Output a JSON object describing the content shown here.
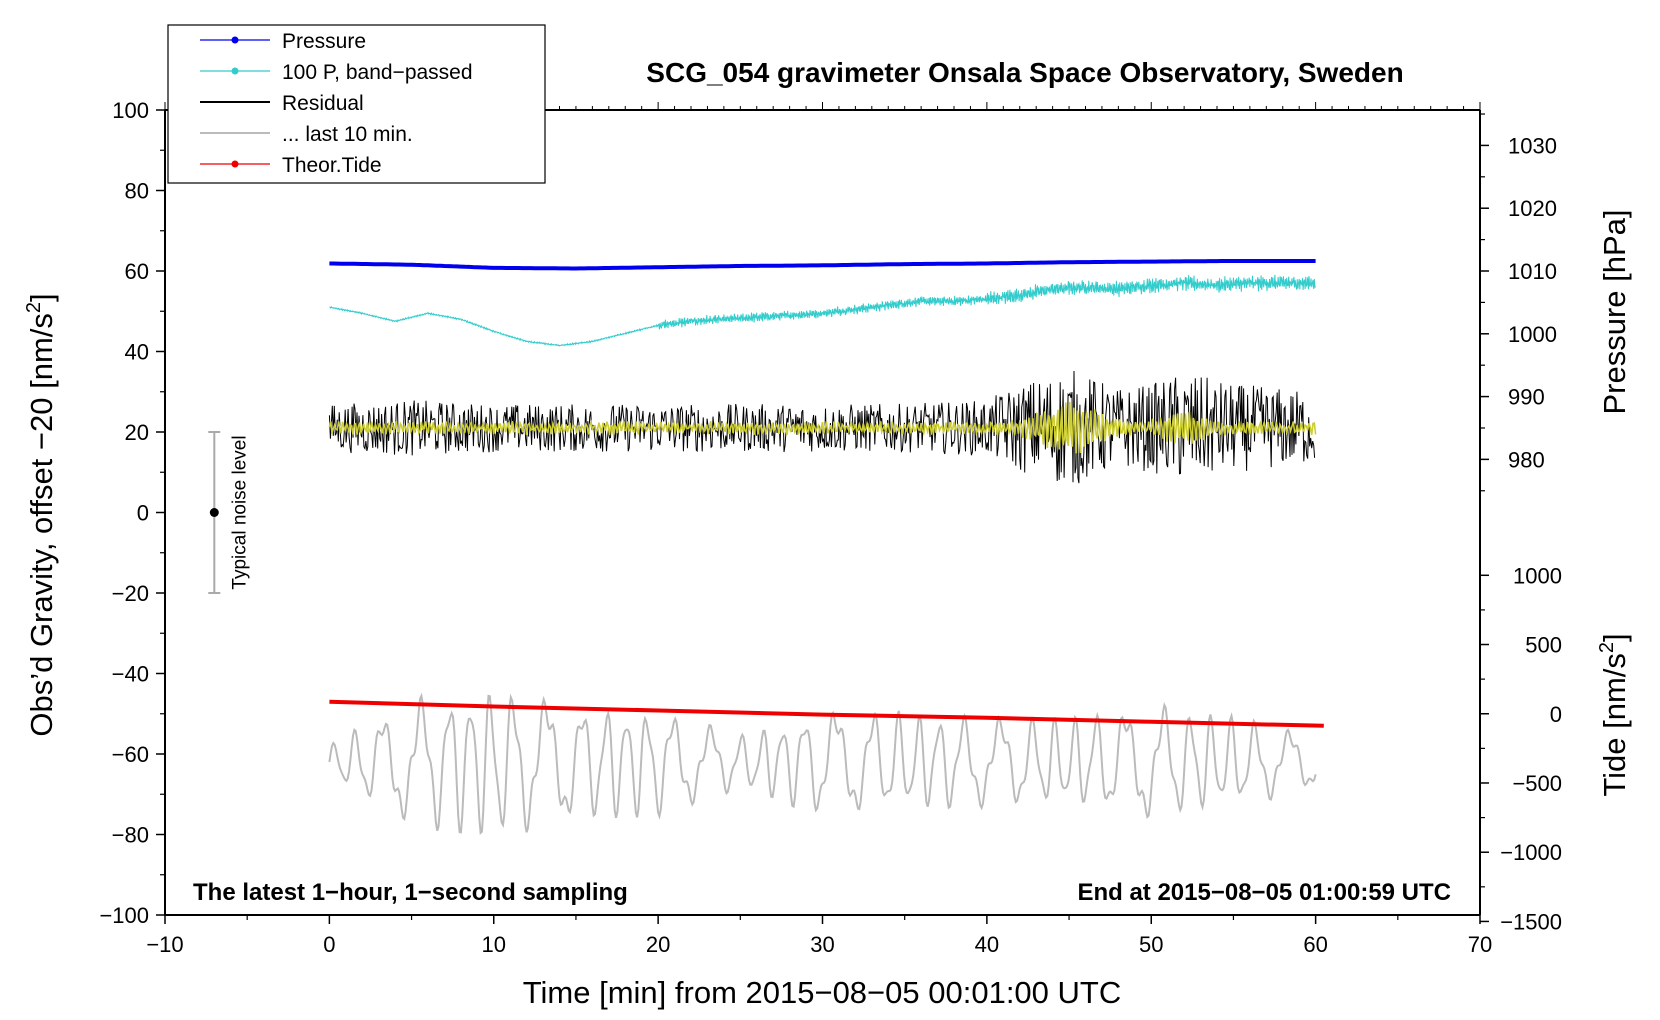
{
  "chart_data": {
    "type": "line",
    "title": "SCG_054 gravimeter Onsala Space Observatory, Sweden",
    "xlabel": "Time [min] from 2015−08−05 00:01:00 UTC",
    "ylabel_left": "Obs’d Gravity, offset −20 [nm/s",
    "ylabel_right_top": "Pressure [hPa]",
    "ylabel_right_bottom": "Tide [nm/s",
    "superscript": "2",
    "close_bracket": "]",
    "xlim": [
      -10,
      70
    ],
    "ylim_left": [
      -100,
      100
    ],
    "x_ticks": [
      {
        "v": -10,
        "label": "−10"
      },
      {
        "v": 0,
        "label": "0"
      },
      {
        "v": 10,
        "label": "10"
      },
      {
        "v": 20,
        "label": "20"
      },
      {
        "v": 30,
        "label": "30"
      },
      {
        "v": 40,
        "label": "40"
      },
      {
        "v": 50,
        "label": "50"
      },
      {
        "v": 60,
        "label": "60"
      },
      {
        "v": 70,
        "label": "70"
      }
    ],
    "y_ticks_left": [
      {
        "v": 100,
        "label": "100"
      },
      {
        "v": 80,
        "label": "80"
      },
      {
        "v": 60,
        "label": "60"
      },
      {
        "v": 40,
        "label": "40"
      },
      {
        "v": 20,
        "label": "20"
      },
      {
        "v": 0,
        "label": "0"
      },
      {
        "v": -20,
        "label": "−20"
      },
      {
        "v": -40,
        "label": "−40"
      },
      {
        "v": -60,
        "label": "−60"
      },
      {
        "v": -80,
        "label": "−80"
      },
      {
        "v": -100,
        "label": "−100"
      }
    ],
    "pressure_axis": {
      "calibration": "1010 hPa = 60 nm/s2 on left axis; 10 hPa = 15.6 nm/s2",
      "ticks": [
        {
          "v": 1030,
          "label": "1030"
        },
        {
          "v": 1020,
          "label": "1020"
        },
        {
          "v": 1010,
          "label": "1010"
        },
        {
          "v": 1000,
          "label": "1000"
        },
        {
          "v": 990,
          "label": "990"
        },
        {
          "v": 980,
          "label": "980"
        }
      ]
    },
    "tide_axis": {
      "calibration": "0 nm/s2 tide = -50 on left axis; 500 nm/s2 = 17.2 on left axis",
      "ticks": [
        {
          "v": 1000,
          "label": "1000"
        },
        {
          "v": 500,
          "label": "500"
        },
        {
          "v": 0,
          "label": "0"
        },
        {
          "v": -500,
          "label": "−500"
        },
        {
          "v": -1000,
          "label": "−1000"
        },
        {
          "v": -1500,
          "label": "−1500"
        }
      ]
    },
    "series": [
      {
        "name": "Pressure",
        "color": "#0000ee",
        "x": [
          0,
          5,
          10,
          15,
          20,
          25,
          30,
          35,
          40,
          45,
          50,
          55,
          60
        ],
        "y_hpa": [
          1011.2,
          1011.0,
          1010.5,
          1010.4,
          1010.6,
          1010.8,
          1010.9,
          1011.1,
          1011.2,
          1011.4,
          1011.5,
          1011.6,
          1011.6
        ]
      },
      {
        "name": "100 P, band−passed",
        "color": "#33cccc",
        "x": [
          0,
          2,
          4,
          6,
          8,
          10,
          12,
          14,
          16,
          18,
          20,
          22,
          24,
          26,
          28,
          30,
          32,
          34,
          36,
          38,
          40,
          42,
          44,
          46,
          48,
          50,
          52,
          54,
          56,
          58,
          60
        ],
        "y": [
          51,
          49.5,
          47.5,
          49.5,
          48,
          45,
          42.5,
          41.5,
          42.5,
          44.5,
          46.5,
          47.5,
          48,
          48.5,
          49,
          49.5,
          50.5,
          51.5,
          52.5,
          52.5,
          53,
          54,
          55.5,
          56,
          55.5,
          56.5,
          57,
          56.5,
          57,
          57,
          57
        ]
      },
      {
        "name": "Residual",
        "color": "#000000",
        "mean": 21,
        "x": [
          0,
          5,
          10,
          15,
          20,
          25,
          30,
          35,
          40,
          42,
          45,
          48,
          50,
          52,
          55,
          58,
          60
        ],
        "envelope_amplitude": [
          6,
          7,
          6,
          6,
          6,
          6,
          6,
          6,
          7,
          11,
          15,
          10,
          11,
          14,
          11,
          10,
          9
        ]
      },
      {
        "name": "... last 10 min.",
        "color": "#bbbbbb",
        "mean": -62,
        "x": [
          0,
          5,
          10,
          15,
          20,
          25,
          30,
          35,
          40,
          45,
          50,
          55,
          60
        ],
        "envelope_amplitude": [
          4,
          14,
          17,
          13,
          12,
          6,
          12,
          11,
          10,
          10,
          13,
          10,
          6
        ]
      },
      {
        "name": "Theor.Tide",
        "color": "#ee0000",
        "x": [
          0,
          10,
          20,
          30,
          40,
          50,
          60.5
        ],
        "y": [
          -47,
          -48.2,
          -49.2,
          -50.2,
          -51,
          -52,
          -53
        ]
      }
    ],
    "noise_marker": {
      "x": -7,
      "y": 0,
      "low": -20,
      "high": 20,
      "label": "Typical noise level"
    },
    "legend_location": "top-left",
    "note_left": "The latest 1−hour, 1−second sampling",
    "note_right": "End at 2015−08−05 01:00:59 UTC"
  }
}
